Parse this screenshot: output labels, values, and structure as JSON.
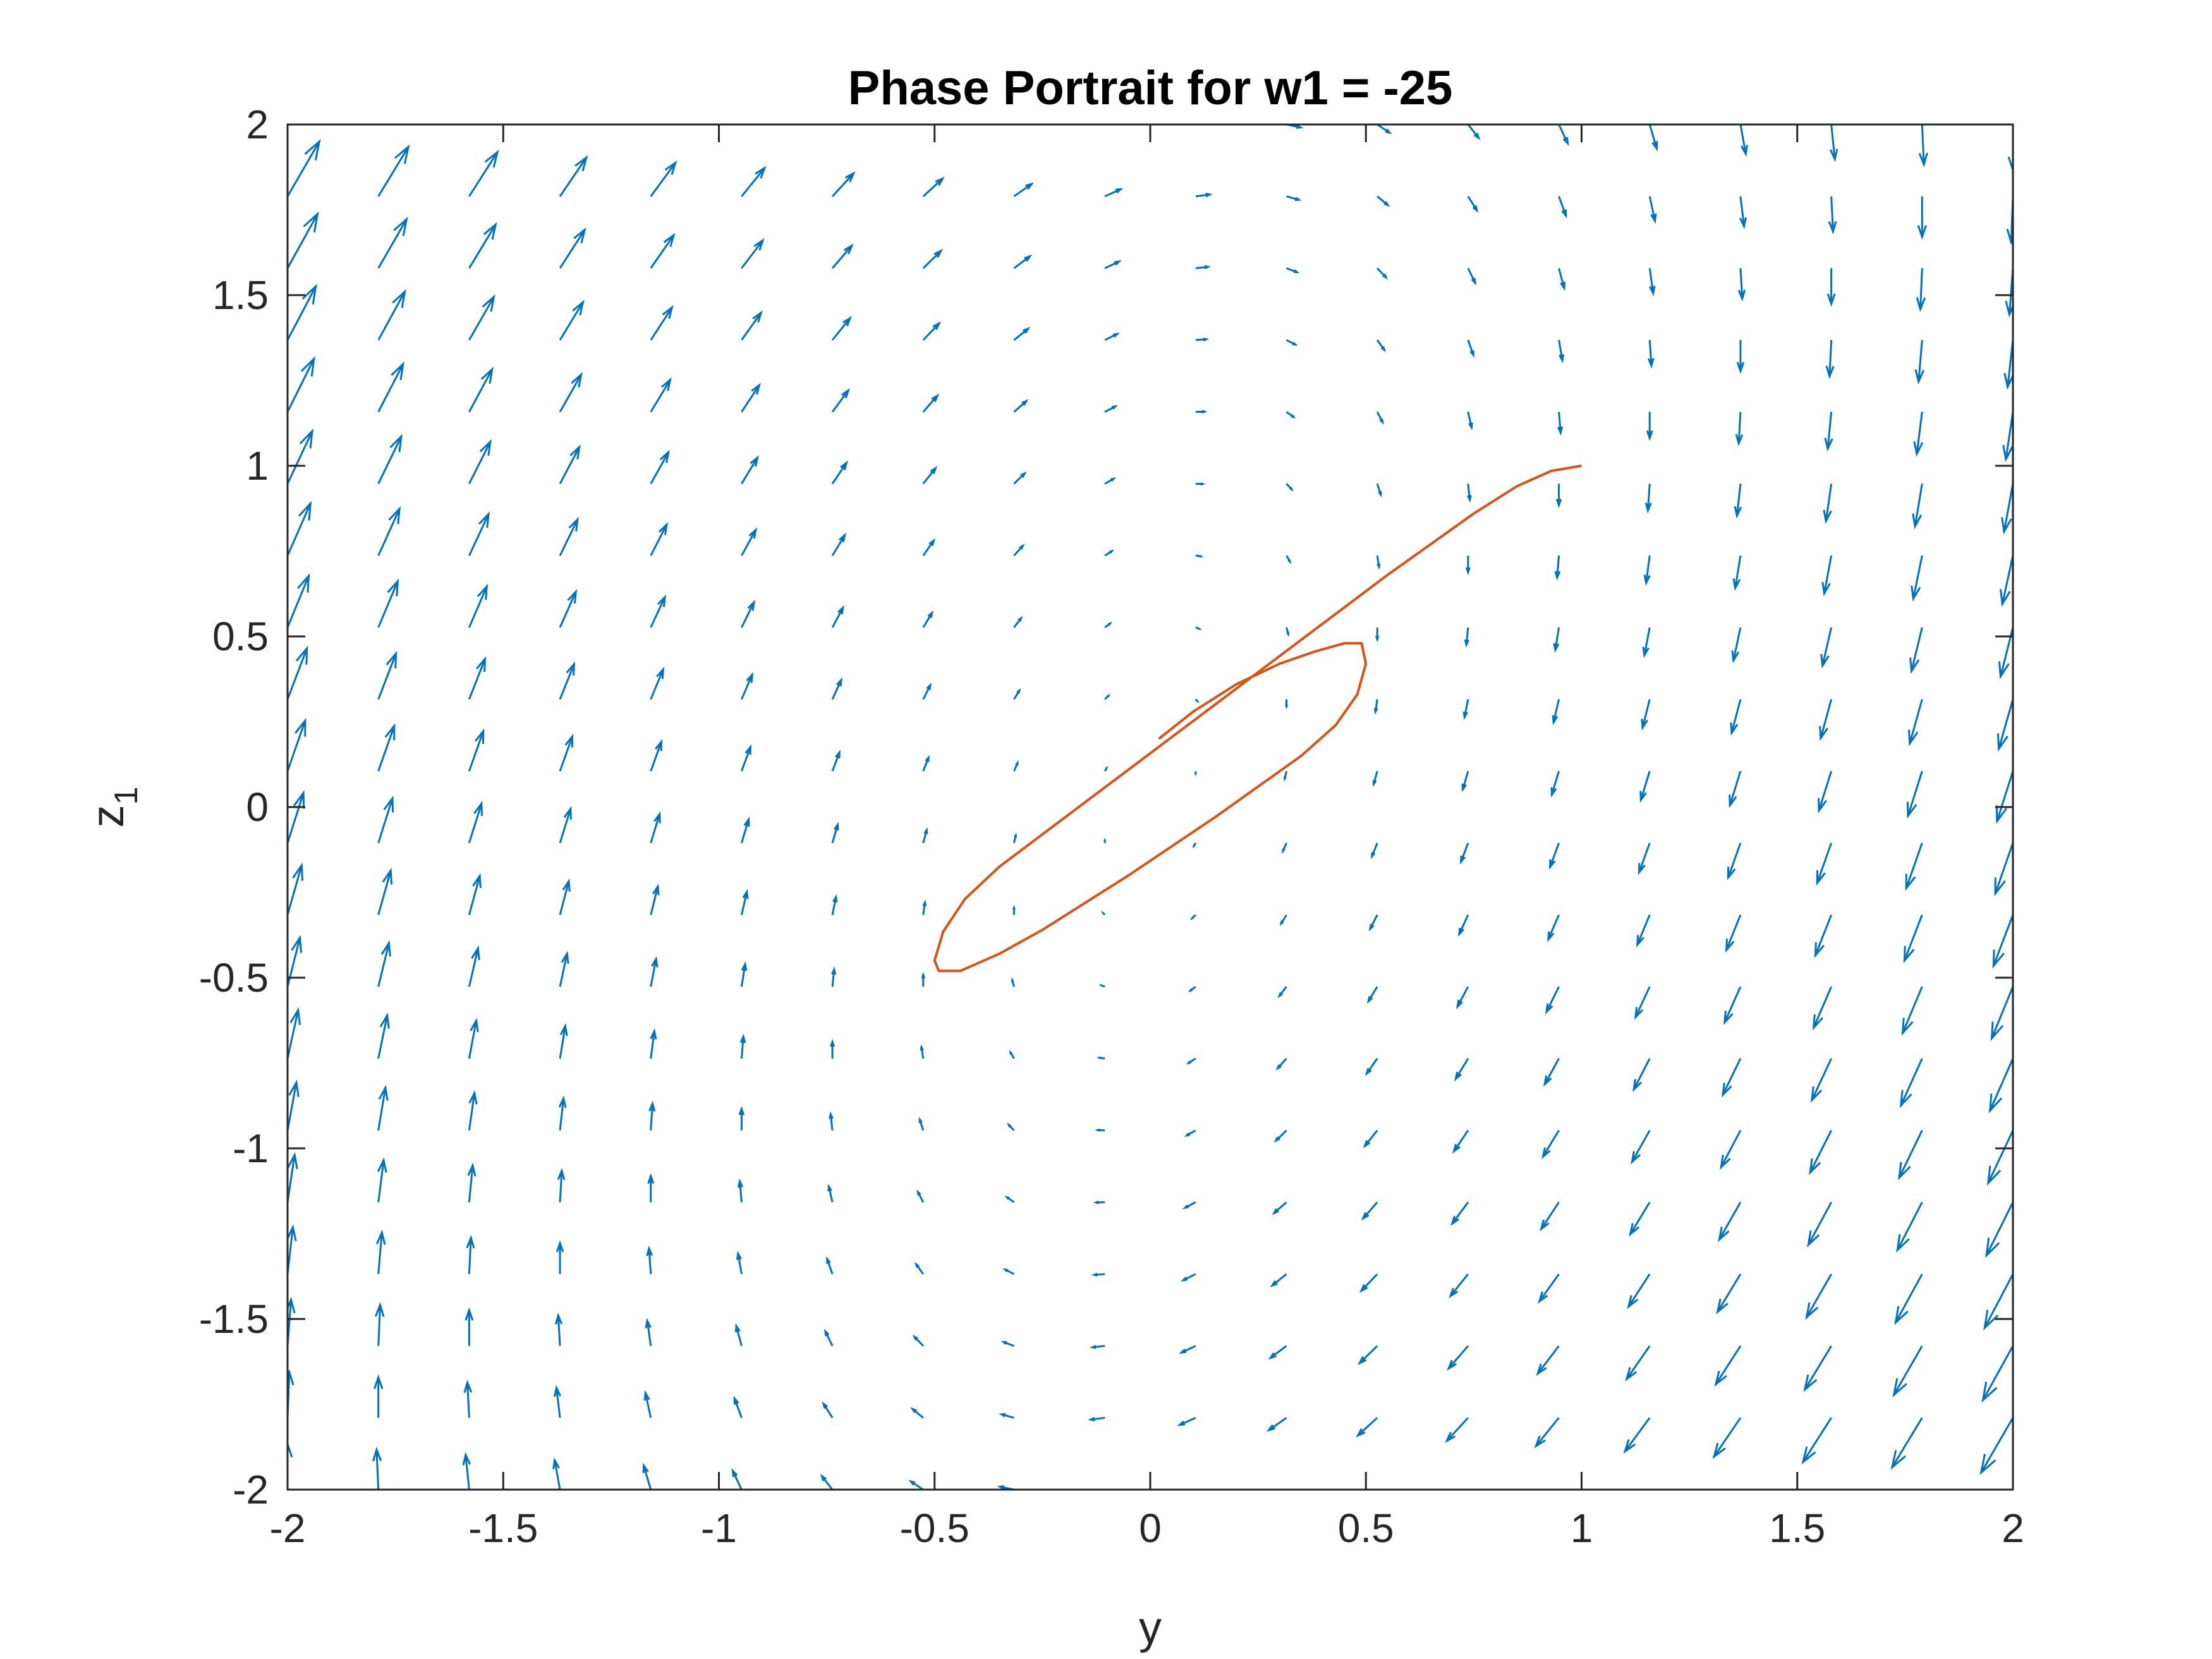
{
  "chart_data": {
    "type": "quiver",
    "title": "Phase Portrait for w1 = -25",
    "xlabel": "y",
    "ylabel_main": "z",
    "ylabel_sub": "1",
    "xlim": [
      -2,
      2
    ],
    "ylim": [
      -2,
      2
    ],
    "xticks": [
      "-2",
      "-1.5",
      "-1",
      "-0.5",
      "0",
      "0.5",
      "1",
      "1.5",
      "2"
    ],
    "yticks": [
      "2",
      "1.5",
      "1",
      "0.5",
      "0",
      "-0.5",
      "-1",
      "-1.5",
      "-2"
    ],
    "grid": false,
    "box": true,
    "vector_field": {
      "color": "#0072BD",
      "grid_points_per_axis": 20,
      "x_range": [
        -2,
        2
      ],
      "y_range": [
        -2,
        2
      ],
      "dx_expression": "z1 - y",
      "dz_expression": "-3*y + 0.3*z1"
    },
    "trajectory": {
      "color": "#D95319",
      "start": [
        1,
        1
      ],
      "points": [
        [
          1.0,
          1.0
        ],
        [
          0.93,
          0.985
        ],
        [
          0.85,
          0.94
        ],
        [
          0.75,
          0.86
        ],
        [
          0.65,
          0.77
        ],
        [
          0.55,
          0.68
        ],
        [
          0.45,
          0.585
        ],
        [
          0.35,
          0.49
        ],
        [
          0.25,
          0.395
        ],
        [
          0.15,
          0.3
        ],
        [
          0.05,
          0.205
        ],
        [
          -0.05,
          0.11
        ],
        [
          -0.15,
          0.015
        ],
        [
          -0.25,
          -0.08
        ],
        [
          -0.35,
          -0.175
        ],
        [
          -0.43,
          -0.27
        ],
        [
          -0.48,
          -0.365
        ],
        [
          -0.5,
          -0.45
        ],
        [
          -0.49,
          -0.48
        ],
        [
          -0.44,
          -0.48
        ],
        [
          -0.35,
          -0.43
        ],
        [
          -0.25,
          -0.36
        ],
        [
          -0.15,
          -0.28
        ],
        [
          -0.05,
          -0.2
        ],
        [
          0.05,
          -0.115
        ],
        [
          0.15,
          -0.03
        ],
        [
          0.25,
          0.06
        ],
        [
          0.35,
          0.15
        ],
        [
          0.43,
          0.24
        ],
        [
          0.48,
          0.33
        ],
        [
          0.5,
          0.42
        ],
        [
          0.49,
          0.48
        ],
        [
          0.45,
          0.48
        ],
        [
          0.38,
          0.455
        ],
        [
          0.3,
          0.42
        ],
        [
          0.2,
          0.36
        ],
        [
          0.1,
          0.28
        ],
        [
          0.02,
          0.2
        ]
      ]
    }
  }
}
